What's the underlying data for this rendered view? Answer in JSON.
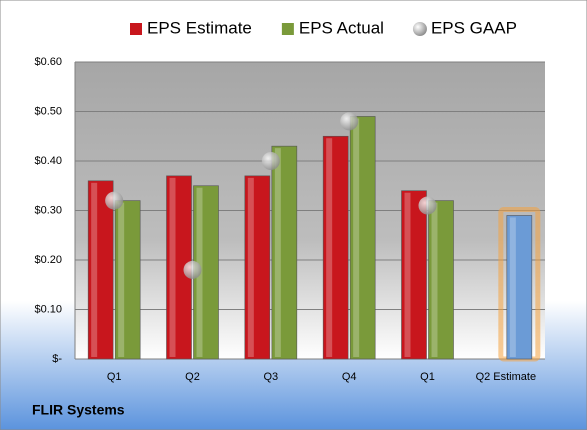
{
  "chart_data": {
    "type": "bar",
    "categories": [
      "Q1",
      "Q2",
      "Q3",
      "Q4",
      "Q1",
      "Q2 Estimate"
    ],
    "series": [
      {
        "name": "EPS Estimate",
        "color": "#c8161d",
        "values": [
          0.36,
          0.37,
          0.37,
          0.45,
          0.34,
          null
        ]
      },
      {
        "name": "EPS Actual",
        "color": "#7a9a3a",
        "values": [
          0.32,
          0.35,
          0.43,
          0.49,
          0.32,
          0.29
        ],
        "colors": [
          "#7a9a3a",
          "#7a9a3a",
          "#7a9a3a",
          "#7a9a3a",
          "#7a9a3a",
          "#6b9bd6"
        ]
      },
      {
        "name": "EPS GAAP",
        "type": "scatter",
        "color": "#b8b8b8",
        "values": [
          0.32,
          0.18,
          0.4,
          0.48,
          0.31,
          null
        ]
      }
    ],
    "ylim": [
      0,
      0.6
    ],
    "yticks": [
      {
        "value": 0,
        "label": "$-"
      },
      {
        "value": 0.1,
        "label": "$0.10"
      },
      {
        "value": 0.2,
        "label": "$0.20"
      },
      {
        "value": 0.3,
        "label": "$0.30"
      },
      {
        "value": 0.4,
        "label": "$0.40"
      },
      {
        "value": 0.5,
        "label": "$0.50"
      },
      {
        "value": 0.6,
        "label": "$0.60"
      }
    ],
    "grid": true,
    "footer": "FLIR Systems"
  }
}
